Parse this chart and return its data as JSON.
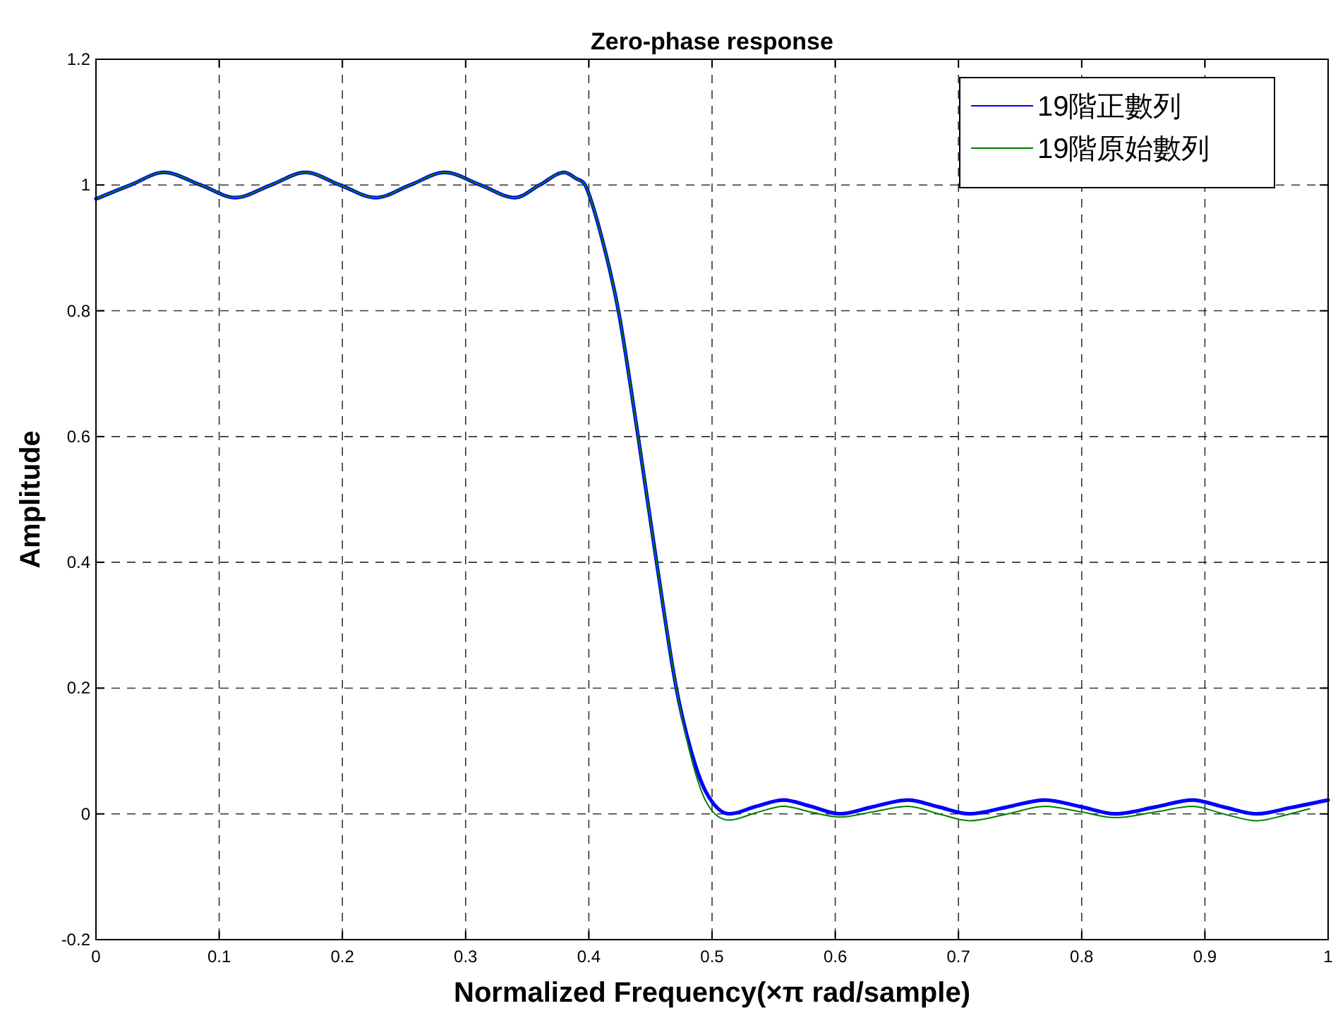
{
  "chart_data": {
    "type": "line",
    "title": "Zero-phase response",
    "xlabel": "Normalized Frequency(×π rad/sample)",
    "ylabel": "Amplitude",
    "xlim": [
      0,
      1
    ],
    "ylim": [
      -0.2,
      1.2
    ],
    "xticks": [
      0,
      0.1,
      0.2,
      0.3,
      0.4,
      0.5,
      0.6,
      0.7,
      0.8,
      0.9,
      1
    ],
    "yticks": [
      -0.2,
      0,
      0.2,
      0.4,
      0.6,
      0.8,
      1,
      1.2
    ],
    "grid": true,
    "legend": "top right",
    "line_style": "solid",
    "series": [
      {
        "name": "19階正數列",
        "color": "#0000ff",
        "x": [
          0,
          0.028,
          0.055,
          0.085,
          0.113,
          0.142,
          0.17,
          0.198,
          0.227,
          0.255,
          0.283,
          0.312,
          0.34,
          0.36,
          0.38,
          0.39,
          0.397,
          0.41,
          0.424,
          0.44,
          0.455,
          0.471,
          0.483,
          0.495,
          0.514,
          0.536,
          0.558,
          0.58,
          0.604,
          0.63,
          0.659,
          0.684,
          0.709,
          0.74,
          0.77,
          0.8,
          0.827,
          0.86,
          0.89,
          0.915,
          0.942,
          0.97,
          1.0
        ],
        "values": [
          0.978,
          1.0,
          1.02,
          1.0,
          0.98,
          1.0,
          1.02,
          1.0,
          0.98,
          1.0,
          1.02,
          1.0,
          0.98,
          1.0,
          1.02,
          1.01,
          1.0,
          0.92,
          0.8,
          0.6,
          0.4,
          0.2,
          0.1,
          0.035,
          0.0,
          0.012,
          0.022,
          0.012,
          0.0,
          0.011,
          0.022,
          0.011,
          0.0,
          0.011,
          0.022,
          0.011,
          0.0,
          0.011,
          0.022,
          0.011,
          0.0,
          0.01,
          0.022
        ]
      },
      {
        "name": "19階原始數列",
        "color": "#008000",
        "x": [
          0,
          0.028,
          0.055,
          0.085,
          0.113,
          0.142,
          0.17,
          0.198,
          0.227,
          0.255,
          0.283,
          0.312,
          0.34,
          0.36,
          0.38,
          0.39,
          0.397,
          0.41,
          0.424,
          0.44,
          0.455,
          0.471,
          0.483,
          0.495,
          0.514,
          0.536,
          0.558,
          0.58,
          0.604,
          0.63,
          0.659,
          0.684,
          0.709,
          0.74,
          0.77,
          0.8,
          0.827,
          0.86,
          0.89,
          0.915,
          0.942,
          0.965,
          0.985
        ],
        "values": [
          0.978,
          1.0,
          1.02,
          1.0,
          0.98,
          1.0,
          1.02,
          1.0,
          0.98,
          1.0,
          1.02,
          1.0,
          0.98,
          1.0,
          1.02,
          1.01,
          1.0,
          0.92,
          0.8,
          0.6,
          0.4,
          0.2,
          0.09,
          0.02,
          -0.01,
          0.002,
          0.012,
          0.003,
          -0.005,
          0.003,
          0.012,
          0.0,
          -0.011,
          0.0,
          0.012,
          0.003,
          -0.006,
          0.003,
          0.012,
          0.0,
          -0.011,
          -0.002,
          0.008
        ]
      }
    ]
  }
}
